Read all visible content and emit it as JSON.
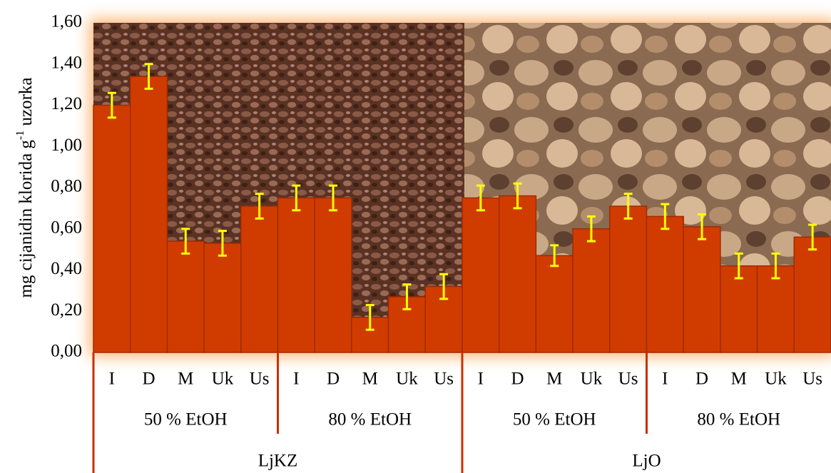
{
  "chart_data": {
    "type": "bar",
    "y_label": [
      "mg cijanidin klorida g",
      "-1",
      " uzorka"
    ],
    "categories": [
      "I",
      "D",
      "M",
      "Uk",
      "Us",
      "I",
      "D",
      "M",
      "Uk",
      "Us",
      "I",
      "D",
      "M",
      "Uk",
      "Us",
      "I",
      "D",
      "M",
      "Uk",
      "Us"
    ],
    "level2": [
      "50 % EtOH",
      "80 % EtOH",
      "50 % EtOH",
      "80 % EtOH"
    ],
    "level3": [
      "LjKZ",
      "LjO"
    ],
    "values": [
      1.2,
      1.34,
      0.54,
      0.53,
      0.71,
      0.75,
      0.75,
      0.17,
      0.27,
      0.32,
      0.75,
      0.76,
      0.47,
      0.6,
      0.71,
      0.66,
      0.61,
      0.42,
      0.42,
      0.56
    ],
    "errors": [
      0.06,
      0.06,
      0.06,
      0.06,
      0.06,
      0.06,
      0.06,
      0.06,
      0.06,
      0.06,
      0.06,
      0.06,
      0.05,
      0.06,
      0.06,
      0.06,
      0.06,
      0.06,
      0.06,
      0.06
    ],
    "color": "#d03c00",
    "error_color": "#ffff00",
    "ylim": [
      0,
      1.6
    ],
    "yticks": [
      {
        "value": 0,
        "label": "0,00"
      },
      {
        "value": 0.2,
        "label": "0,20"
      },
      {
        "value": 0.4,
        "label": "0,40"
      },
      {
        "value": 0.6,
        "label": "0,60"
      },
      {
        "value": 0.8,
        "label": "0,80"
      },
      {
        "value": 1.0,
        "label": "1,00"
      },
      {
        "value": 1.2,
        "label": "1,20"
      },
      {
        "value": 1.4,
        "label": "1,40"
      },
      {
        "value": 1.6,
        "label": "1,60"
      }
    ]
  }
}
